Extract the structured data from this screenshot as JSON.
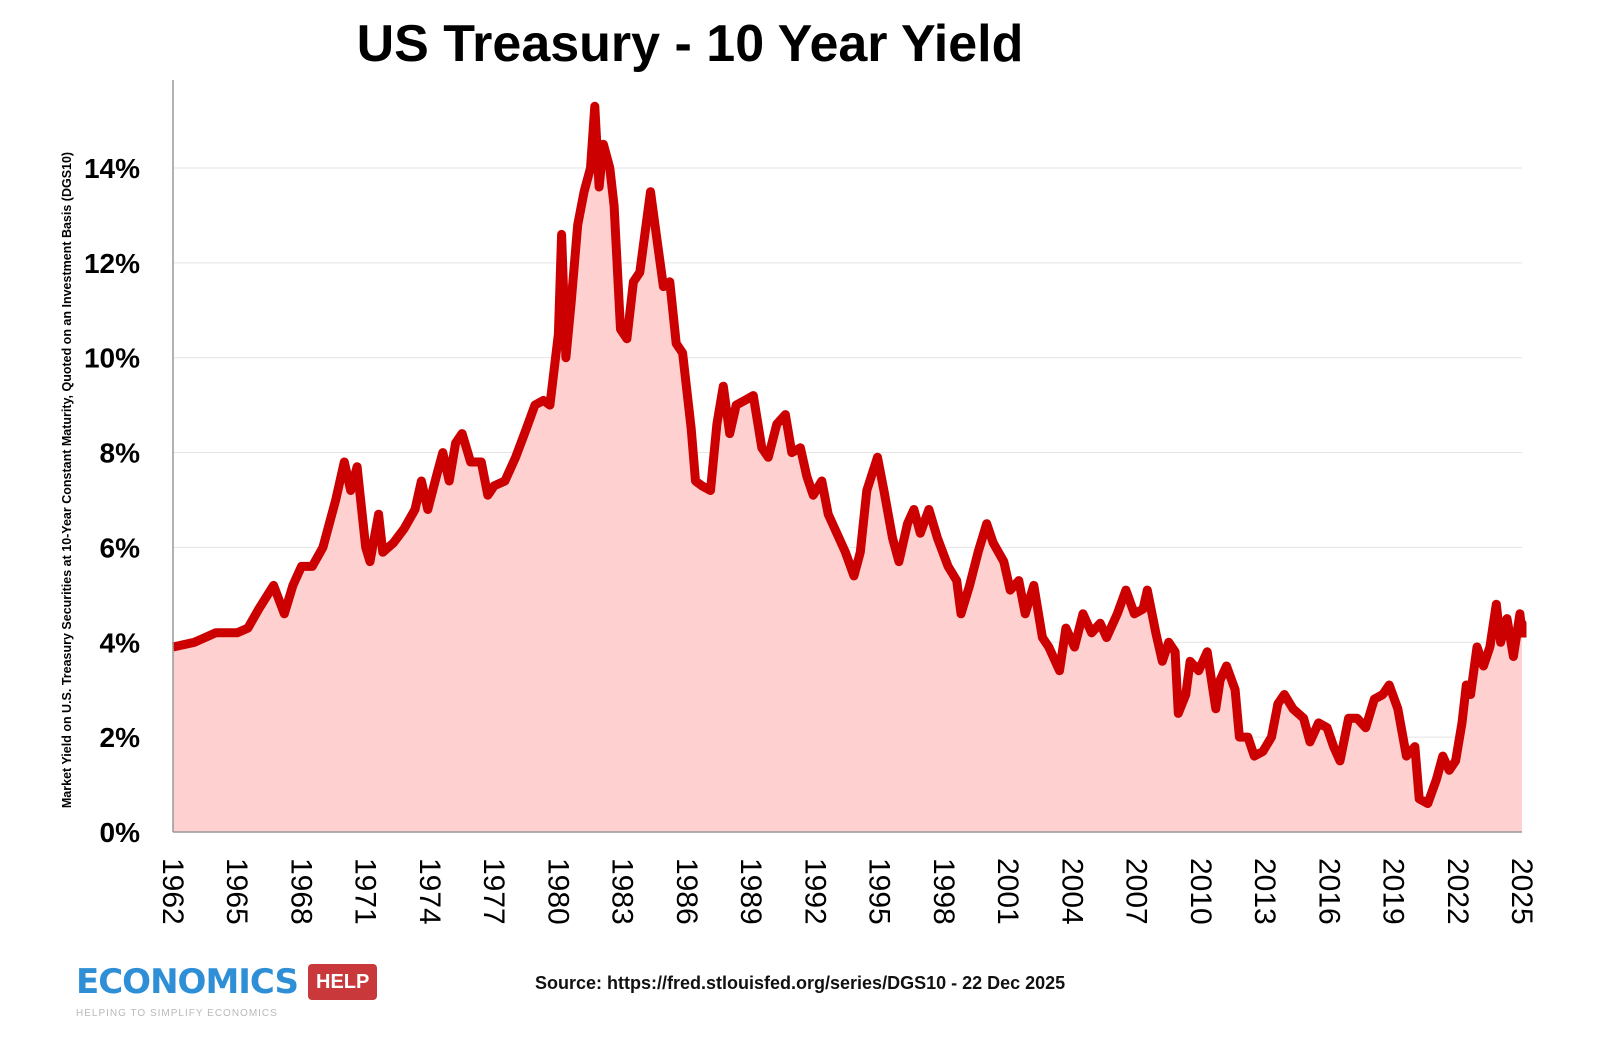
{
  "chart_data": {
    "type": "area",
    "title": "US Treasury - 10 Year Yield",
    "ylabel": "Market Yield on U.S. Treasury Securities at 10-Year Constant Maturity, Quoted on an Investment Basis (DGS10)",
    "xlabel": "",
    "xlim": [
      1962,
      2025.97
    ],
    "ylim": [
      0,
      16
    ],
    "y_ticks": [
      "0%",
      "2%",
      "4%",
      "6%",
      "8%",
      "10%",
      "12%",
      "14%"
    ],
    "y_tick_values": [
      0,
      2,
      4,
      6,
      8,
      10,
      12,
      14
    ],
    "x_ticks": [
      "1962",
      "1965",
      "1968",
      "1971",
      "1974",
      "1977",
      "1980",
      "1983",
      "1986",
      "1989",
      "1992",
      "1995",
      "1998",
      "2001",
      "2004",
      "2007",
      "2010",
      "2013",
      "2016",
      "2019",
      "2022",
      "2025"
    ],
    "grid": "horizontal",
    "colors": {
      "line": "#cc0000",
      "fill": "#ffd0d0"
    },
    "series": [
      {
        "points": [
          [
            1962.0,
            3.9
          ],
          [
            1963,
            4.0
          ],
          [
            1964,
            4.2
          ],
          [
            1965,
            4.2
          ],
          [
            1965.5,
            4.3
          ],
          [
            1966,
            4.7
          ],
          [
            1966.7,
            5.2
          ],
          [
            1967.2,
            4.6
          ],
          [
            1967.6,
            5.2
          ],
          [
            1968,
            5.6
          ],
          [
            1968.5,
            5.6
          ],
          [
            1969,
            6.0
          ],
          [
            1969.6,
            7.0
          ],
          [
            1970,
            7.8
          ],
          [
            1970.3,
            7.2
          ],
          [
            1970.6,
            7.7
          ],
          [
            1971,
            6.0
          ],
          [
            1971.2,
            5.7
          ],
          [
            1971.6,
            6.7
          ],
          [
            1971.8,
            5.9
          ],
          [
            1972.3,
            6.1
          ],
          [
            1972.8,
            6.4
          ],
          [
            1973.3,
            6.8
          ],
          [
            1973.6,
            7.4
          ],
          [
            1973.9,
            6.8
          ],
          [
            1974.3,
            7.5
          ],
          [
            1974.6,
            8.0
          ],
          [
            1974.9,
            7.4
          ],
          [
            1975.2,
            8.2
          ],
          [
            1975.5,
            8.4
          ],
          [
            1975.9,
            7.8
          ],
          [
            1976.4,
            7.8
          ],
          [
            1976.7,
            7.1
          ],
          [
            1977,
            7.3
          ],
          [
            1977.5,
            7.4
          ],
          [
            1978,
            7.9
          ],
          [
            1978.5,
            8.5
          ],
          [
            1978.9,
            9.0
          ],
          [
            1979.3,
            9.1
          ],
          [
            1979.6,
            9.0
          ],
          [
            1980,
            10.5
          ],
          [
            1980.15,
            12.6
          ],
          [
            1980.35,
            10.0
          ],
          [
            1980.6,
            11.2
          ],
          [
            1980.9,
            12.8
          ],
          [
            1981.2,
            13.5
          ],
          [
            1981.5,
            14.0
          ],
          [
            1981.7,
            15.3
          ],
          [
            1981.9,
            13.6
          ],
          [
            1982.1,
            14.5
          ],
          [
            1982.4,
            14.0
          ],
          [
            1982.6,
            13.2
          ],
          [
            1982.9,
            10.6
          ],
          [
            1983.2,
            10.4
          ],
          [
            1983.5,
            11.6
          ],
          [
            1983.8,
            11.8
          ],
          [
            1984.3,
            13.5
          ],
          [
            1984.6,
            12.5
          ],
          [
            1984.9,
            11.5
          ],
          [
            1985.2,
            11.6
          ],
          [
            1985.5,
            10.3
          ],
          [
            1985.8,
            10.1
          ],
          [
            1986.2,
            8.5
          ],
          [
            1986.4,
            7.4
          ],
          [
            1986.7,
            7.3
          ],
          [
            1987.1,
            7.2
          ],
          [
            1987.4,
            8.6
          ],
          [
            1987.7,
            9.4
          ],
          [
            1988.0,
            8.4
          ],
          [
            1988.3,
            9.0
          ],
          [
            1988.7,
            9.1
          ],
          [
            1989.1,
            9.2
          ],
          [
            1989.5,
            8.1
          ],
          [
            1989.8,
            7.9
          ],
          [
            1990.2,
            8.6
          ],
          [
            1990.6,
            8.8
          ],
          [
            1990.9,
            8.0
          ],
          [
            1991.3,
            8.1
          ],
          [
            1991.6,
            7.5
          ],
          [
            1991.9,
            7.1
          ],
          [
            1992.3,
            7.4
          ],
          [
            1992.6,
            6.7
          ],
          [
            1993,
            6.3
          ],
          [
            1993.4,
            5.9
          ],
          [
            1993.8,
            5.4
          ],
          [
            1994.1,
            5.9
          ],
          [
            1994.4,
            7.2
          ],
          [
            1994.9,
            7.9
          ],
          [
            1995.2,
            7.2
          ],
          [
            1995.6,
            6.2
          ],
          [
            1995.9,
            5.7
          ],
          [
            1996.3,
            6.5
          ],
          [
            1996.6,
            6.8
          ],
          [
            1996.9,
            6.3
          ],
          [
            1997.3,
            6.8
          ],
          [
            1997.7,
            6.2
          ],
          [
            1998.2,
            5.6
          ],
          [
            1998.6,
            5.3
          ],
          [
            1998.8,
            4.6
          ],
          [
            1999.2,
            5.2
          ],
          [
            1999.6,
            5.9
          ],
          [
            2000.0,
            6.5
          ],
          [
            2000.3,
            6.1
          ],
          [
            2000.8,
            5.7
          ],
          [
            2001.1,
            5.1
          ],
          [
            2001.5,
            5.3
          ],
          [
            2001.8,
            4.6
          ],
          [
            2002.2,
            5.2
          ],
          [
            2002.6,
            4.1
          ],
          [
            2002.9,
            3.9
          ],
          [
            2003.4,
            3.4
          ],
          [
            2003.7,
            4.3
          ],
          [
            2004.1,
            3.9
          ],
          [
            2004.5,
            4.6
          ],
          [
            2004.9,
            4.2
          ],
          [
            2005.3,
            4.4
          ],
          [
            2005.6,
            4.1
          ],
          [
            2006.1,
            4.6
          ],
          [
            2006.5,
            5.1
          ],
          [
            2006.9,
            4.6
          ],
          [
            2007.3,
            4.7
          ],
          [
            2007.5,
            5.1
          ],
          [
            2007.9,
            4.2
          ],
          [
            2008.2,
            3.6
          ],
          [
            2008.5,
            4.0
          ],
          [
            2008.8,
            3.8
          ],
          [
            2008.95,
            2.5
          ],
          [
            2009.3,
            2.9
          ],
          [
            2009.5,
            3.6
          ],
          [
            2009.9,
            3.4
          ],
          [
            2010.3,
            3.8
          ],
          [
            2010.7,
            2.6
          ],
          [
            2010.9,
            3.2
          ],
          [
            2011.2,
            3.5
          ],
          [
            2011.6,
            3.0
          ],
          [
            2011.8,
            2.0
          ],
          [
            2012.2,
            2.0
          ],
          [
            2012.5,
            1.6
          ],
          [
            2012.9,
            1.7
          ],
          [
            2013.3,
            2.0
          ],
          [
            2013.6,
            2.7
          ],
          [
            2013.9,
            2.9
          ],
          [
            2014.3,
            2.6
          ],
          [
            2014.8,
            2.4
          ],
          [
            2015.1,
            1.9
          ],
          [
            2015.5,
            2.3
          ],
          [
            2015.9,
            2.2
          ],
          [
            2016.2,
            1.8
          ],
          [
            2016.5,
            1.5
          ],
          [
            2016.9,
            2.4
          ],
          [
            2017.3,
            2.4
          ],
          [
            2017.7,
            2.2
          ],
          [
            2018.1,
            2.8
          ],
          [
            2018.5,
            2.9
          ],
          [
            2018.8,
            3.1
          ],
          [
            2019.2,
            2.6
          ],
          [
            2019.6,
            1.6
          ],
          [
            2020.0,
            1.8
          ],
          [
            2020.2,
            0.7
          ],
          [
            2020.6,
            0.6
          ],
          [
            2021.0,
            1.1
          ],
          [
            2021.3,
            1.6
          ],
          [
            2021.6,
            1.3
          ],
          [
            2021.9,
            1.5
          ],
          [
            2022.2,
            2.3
          ],
          [
            2022.4,
            3.1
          ],
          [
            2022.6,
            2.9
          ],
          [
            2022.9,
            3.9
          ],
          [
            2023.2,
            3.5
          ],
          [
            2023.5,
            3.9
          ],
          [
            2023.8,
            4.8
          ],
          [
            2024.0,
            4.0
          ],
          [
            2024.3,
            4.5
          ],
          [
            2024.6,
            3.7
          ],
          [
            2024.9,
            4.6
          ],
          [
            2025.2,
            4.2
          ],
          [
            2025.5,
            4.4
          ],
          [
            2025.97,
            4.1
          ]
        ]
      }
    ]
  },
  "source": "Source: https://fred.stlouisfed.org/series/DGS10 - 22 Dec 2025",
  "logo": {
    "word": "ECONOMICS",
    "tag": "HELP",
    "tagline": "HELPING TO SIMPLIFY ECONOMICS"
  }
}
